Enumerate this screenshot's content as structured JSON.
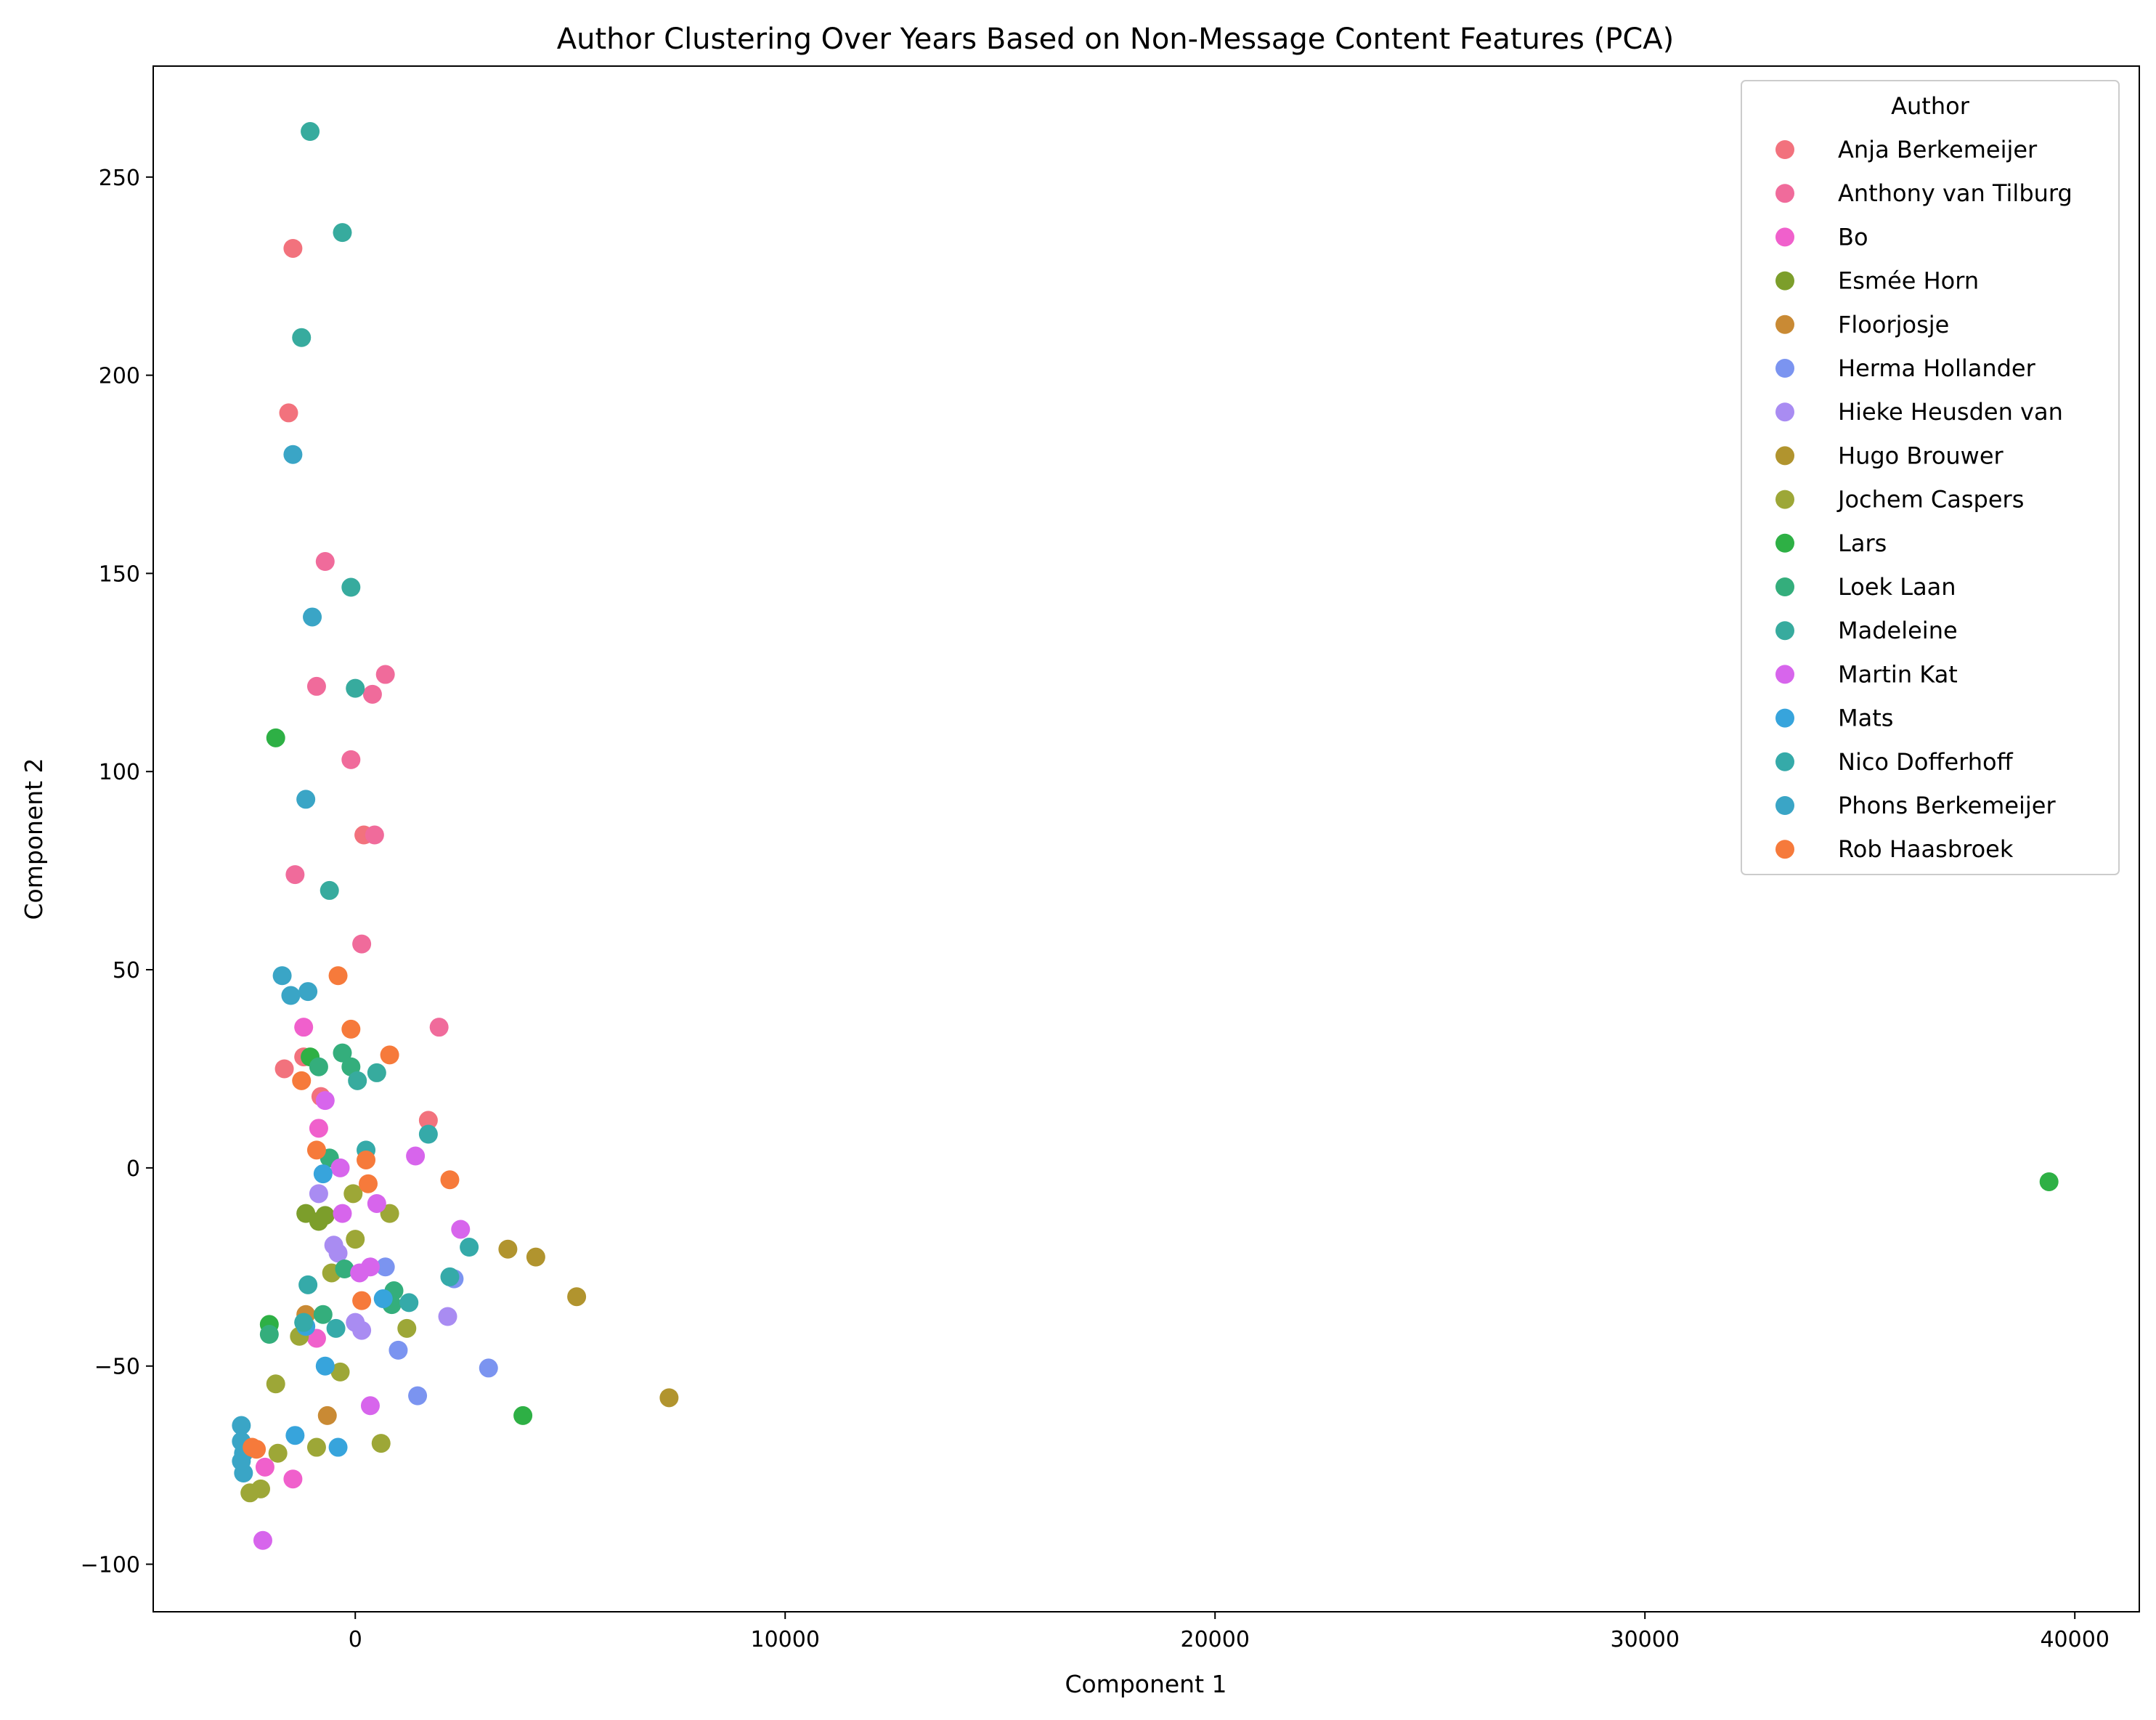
{
  "chart_data": {
    "type": "scatter",
    "title": "Author Clustering Over Years Based on Non-Message Content Features (PCA)",
    "xlabel": "Component 1",
    "ylabel": "Component 2",
    "xlim": [
      -4700,
      41500
    ],
    "ylim": [
      -112,
      278
    ],
    "xticks": [
      0,
      10000,
      20000,
      30000,
      40000
    ],
    "xtick_labels": [
      "0",
      "10000",
      "20000",
      "30000",
      "40000"
    ],
    "yticks": [
      -100,
      -50,
      0,
      50,
      100,
      150,
      200,
      250
    ],
    "ytick_labels": [
      "−100",
      "−50",
      "0",
      "50",
      "100",
      "150",
      "200",
      "250"
    ],
    "grid": false,
    "legend": {
      "title": "Author",
      "placement": "top-right"
    },
    "series": [
      {
        "name": "Anja Berkemeijer",
        "color": "#f2727d",
        "points": [
          [
            -1450,
            232
          ],
          [
            -1550,
            190.5
          ],
          [
            -1650,
            25
          ],
          [
            -1200,
            28
          ],
          [
            -800,
            18
          ],
          [
            200,
            84
          ],
          [
            1700,
            12
          ]
        ]
      },
      {
        "name": "Anthony van Tilburg",
        "color": "#f06b9b",
        "points": [
          [
            -700,
            153
          ],
          [
            -900,
            121.5
          ],
          [
            700,
            124.5
          ],
          [
            400,
            119.5
          ],
          [
            -100,
            103
          ],
          [
            450,
            84
          ],
          [
            -1400,
            74
          ],
          [
            150,
            56.5
          ],
          [
            1950,
            35.5
          ]
        ]
      },
      {
        "name": "Bo",
        "color": "#f060cc",
        "points": [
          [
            -1200,
            35.5
          ],
          [
            -850,
            10
          ],
          [
            -900,
            -43
          ],
          [
            -2100,
            -75.5
          ],
          [
            -1450,
            -78.5
          ]
        ]
      },
      {
        "name": "Esmée Horn",
        "color": "#7c9e2b",
        "points": [
          [
            -1150,
            -11.5
          ],
          [
            -850,
            -13.5
          ],
          [
            -700,
            -12
          ]
        ]
      },
      {
        "name": "Floorjosje",
        "color": "#c98a34",
        "points": [
          [
            -1150,
            -37
          ],
          [
            -650,
            -62.5
          ]
        ]
      },
      {
        "name": "Herma Hollander",
        "color": "#7b94f0",
        "points": [
          [
            700,
            -25
          ],
          [
            1000,
            -46
          ],
          [
            2300,
            -28
          ],
          [
            1450,
            -57.5
          ],
          [
            3100,
            -50.5
          ]
        ]
      },
      {
        "name": "Hieke Heusden van",
        "color": "#a98cf2",
        "points": [
          [
            -850,
            -6.5
          ],
          [
            -500,
            -19.5
          ],
          [
            -400,
            -21.5
          ],
          [
            0,
            -39
          ],
          [
            150,
            -41
          ],
          [
            2150,
            -37.5
          ]
        ]
      },
      {
        "name": "Hugo Brouwer",
        "color": "#b1942e",
        "points": [
          [
            3550,
            -20.5
          ],
          [
            4200,
            -22.5
          ],
          [
            5150,
            -32.5
          ],
          [
            7300,
            -58
          ]
        ]
      },
      {
        "name": "Jochem Caspers",
        "color": "#9da737",
        "points": [
          [
            -50,
            -6.5
          ],
          [
            0,
            -18
          ],
          [
            -550,
            -26.5
          ],
          [
            800,
            -11.5
          ],
          [
            1200,
            -40.5
          ],
          [
            -1300,
            -42.5
          ],
          [
            -1850,
            -54.5
          ],
          [
            -350,
            -51.5
          ],
          [
            -1800,
            -72
          ],
          [
            -900,
            -70.5
          ],
          [
            600,
            -69.5
          ],
          [
            -2200,
            -81
          ],
          [
            -2450,
            -82
          ]
        ]
      },
      {
        "name": "Lars",
        "color": "#2eb045",
        "points": [
          [
            -1850,
            108.5
          ],
          [
            -1050,
            28
          ],
          [
            -2000,
            -39.5
          ],
          [
            3900,
            -62.5
          ],
          [
            39400,
            -3.5
          ]
        ]
      },
      {
        "name": "Loek Laan",
        "color": "#34ae7c",
        "points": [
          [
            -300,
            29
          ],
          [
            -100,
            25.5
          ],
          [
            -850,
            25.5
          ],
          [
            -600,
            2.5
          ],
          [
            -250,
            -25.5
          ],
          [
            -750,
            -37
          ],
          [
            -2000,
            -42
          ],
          [
            900,
            -31
          ],
          [
            850,
            -34.5
          ]
        ]
      },
      {
        "name": "Madeleine",
        "color": "#37ab9e",
        "points": [
          [
            -1050,
            261.5
          ],
          [
            -300,
            236
          ],
          [
            -1250,
            209.5
          ],
          [
            -100,
            146.5
          ],
          [
            0,
            121
          ],
          [
            -600,
            70
          ],
          [
            50,
            22
          ],
          [
            500,
            24
          ]
        ]
      },
      {
        "name": "Martin Kat",
        "color": "#d765ec",
        "points": [
          [
            -700,
            17
          ],
          [
            -350,
            0
          ],
          [
            -300,
            -11.5
          ],
          [
            1400,
            3
          ],
          [
            500,
            -9
          ],
          [
            2450,
            -15.5
          ],
          [
            350,
            -25
          ],
          [
            100,
            -26.5
          ],
          [
            350,
            -60
          ],
          [
            -2150,
            -94
          ]
        ]
      },
      {
        "name": "Mats",
        "color": "#37a4dc",
        "points": [
          [
            -750,
            -1.5
          ],
          [
            650,
            -33
          ],
          [
            -1150,
            -40
          ],
          [
            -700,
            -50
          ],
          [
            -1400,
            -67.5
          ],
          [
            -400,
            -70.5
          ]
        ]
      },
      {
        "name": "Nico Dofferhoff",
        "color": "#35aaa9",
        "points": [
          [
            250,
            4.5
          ],
          [
            1700,
            8.5
          ],
          [
            2650,
            -20
          ],
          [
            2200,
            -27.5
          ],
          [
            1250,
            -34
          ],
          [
            -1100,
            -29.5
          ],
          [
            -450,
            -40.5
          ],
          [
            -1200,
            -39
          ]
        ]
      },
      {
        "name": "Phons Berkemeijer",
        "color": "#3aa5c6",
        "points": [
          [
            -1450,
            180
          ],
          [
            -1000,
            139
          ],
          [
            -1150,
            93
          ],
          [
            -1700,
            48.5
          ],
          [
            -1500,
            43.5
          ],
          [
            -1100,
            44.5
          ],
          [
            -2650,
            -65
          ],
          [
            -2650,
            -69
          ],
          [
            -2600,
            -72
          ],
          [
            -2650,
            -74
          ],
          [
            -2600,
            -77
          ]
        ]
      },
      {
        "name": "Rob Haasbroek",
        "color": "#f67a3b",
        "points": [
          [
            -400,
            48.5
          ],
          [
            -100,
            35
          ],
          [
            800,
            28.5
          ],
          [
            -1250,
            22
          ],
          [
            -900,
            4.5
          ],
          [
            250,
            2
          ],
          [
            300,
            -4
          ],
          [
            2200,
            -3
          ],
          [
            150,
            -33.5
          ],
          [
            -2300,
            -71
          ],
          [
            -2400,
            -70.5
          ]
        ]
      }
    ]
  }
}
